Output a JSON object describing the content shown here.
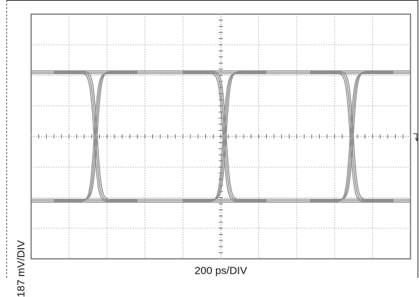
{
  "chart_data": {
    "type": "line",
    "title": "",
    "xlabel": "200 ps/DIV",
    "ylabel": "187 mV/DIV",
    "x_divisions": 10,
    "y_divisions": 8,
    "grid": true,
    "trace_color": "#888888",
    "series": [
      {
        "values_high_div": 2.1,
        "values_low_div": -2.1,
        "crossings_div": [
          1.7,
          5.1,
          8.45
        ],
        "crossing_level_div": 0,
        "transition_width_div": 0.45
      }
    ]
  }
}
